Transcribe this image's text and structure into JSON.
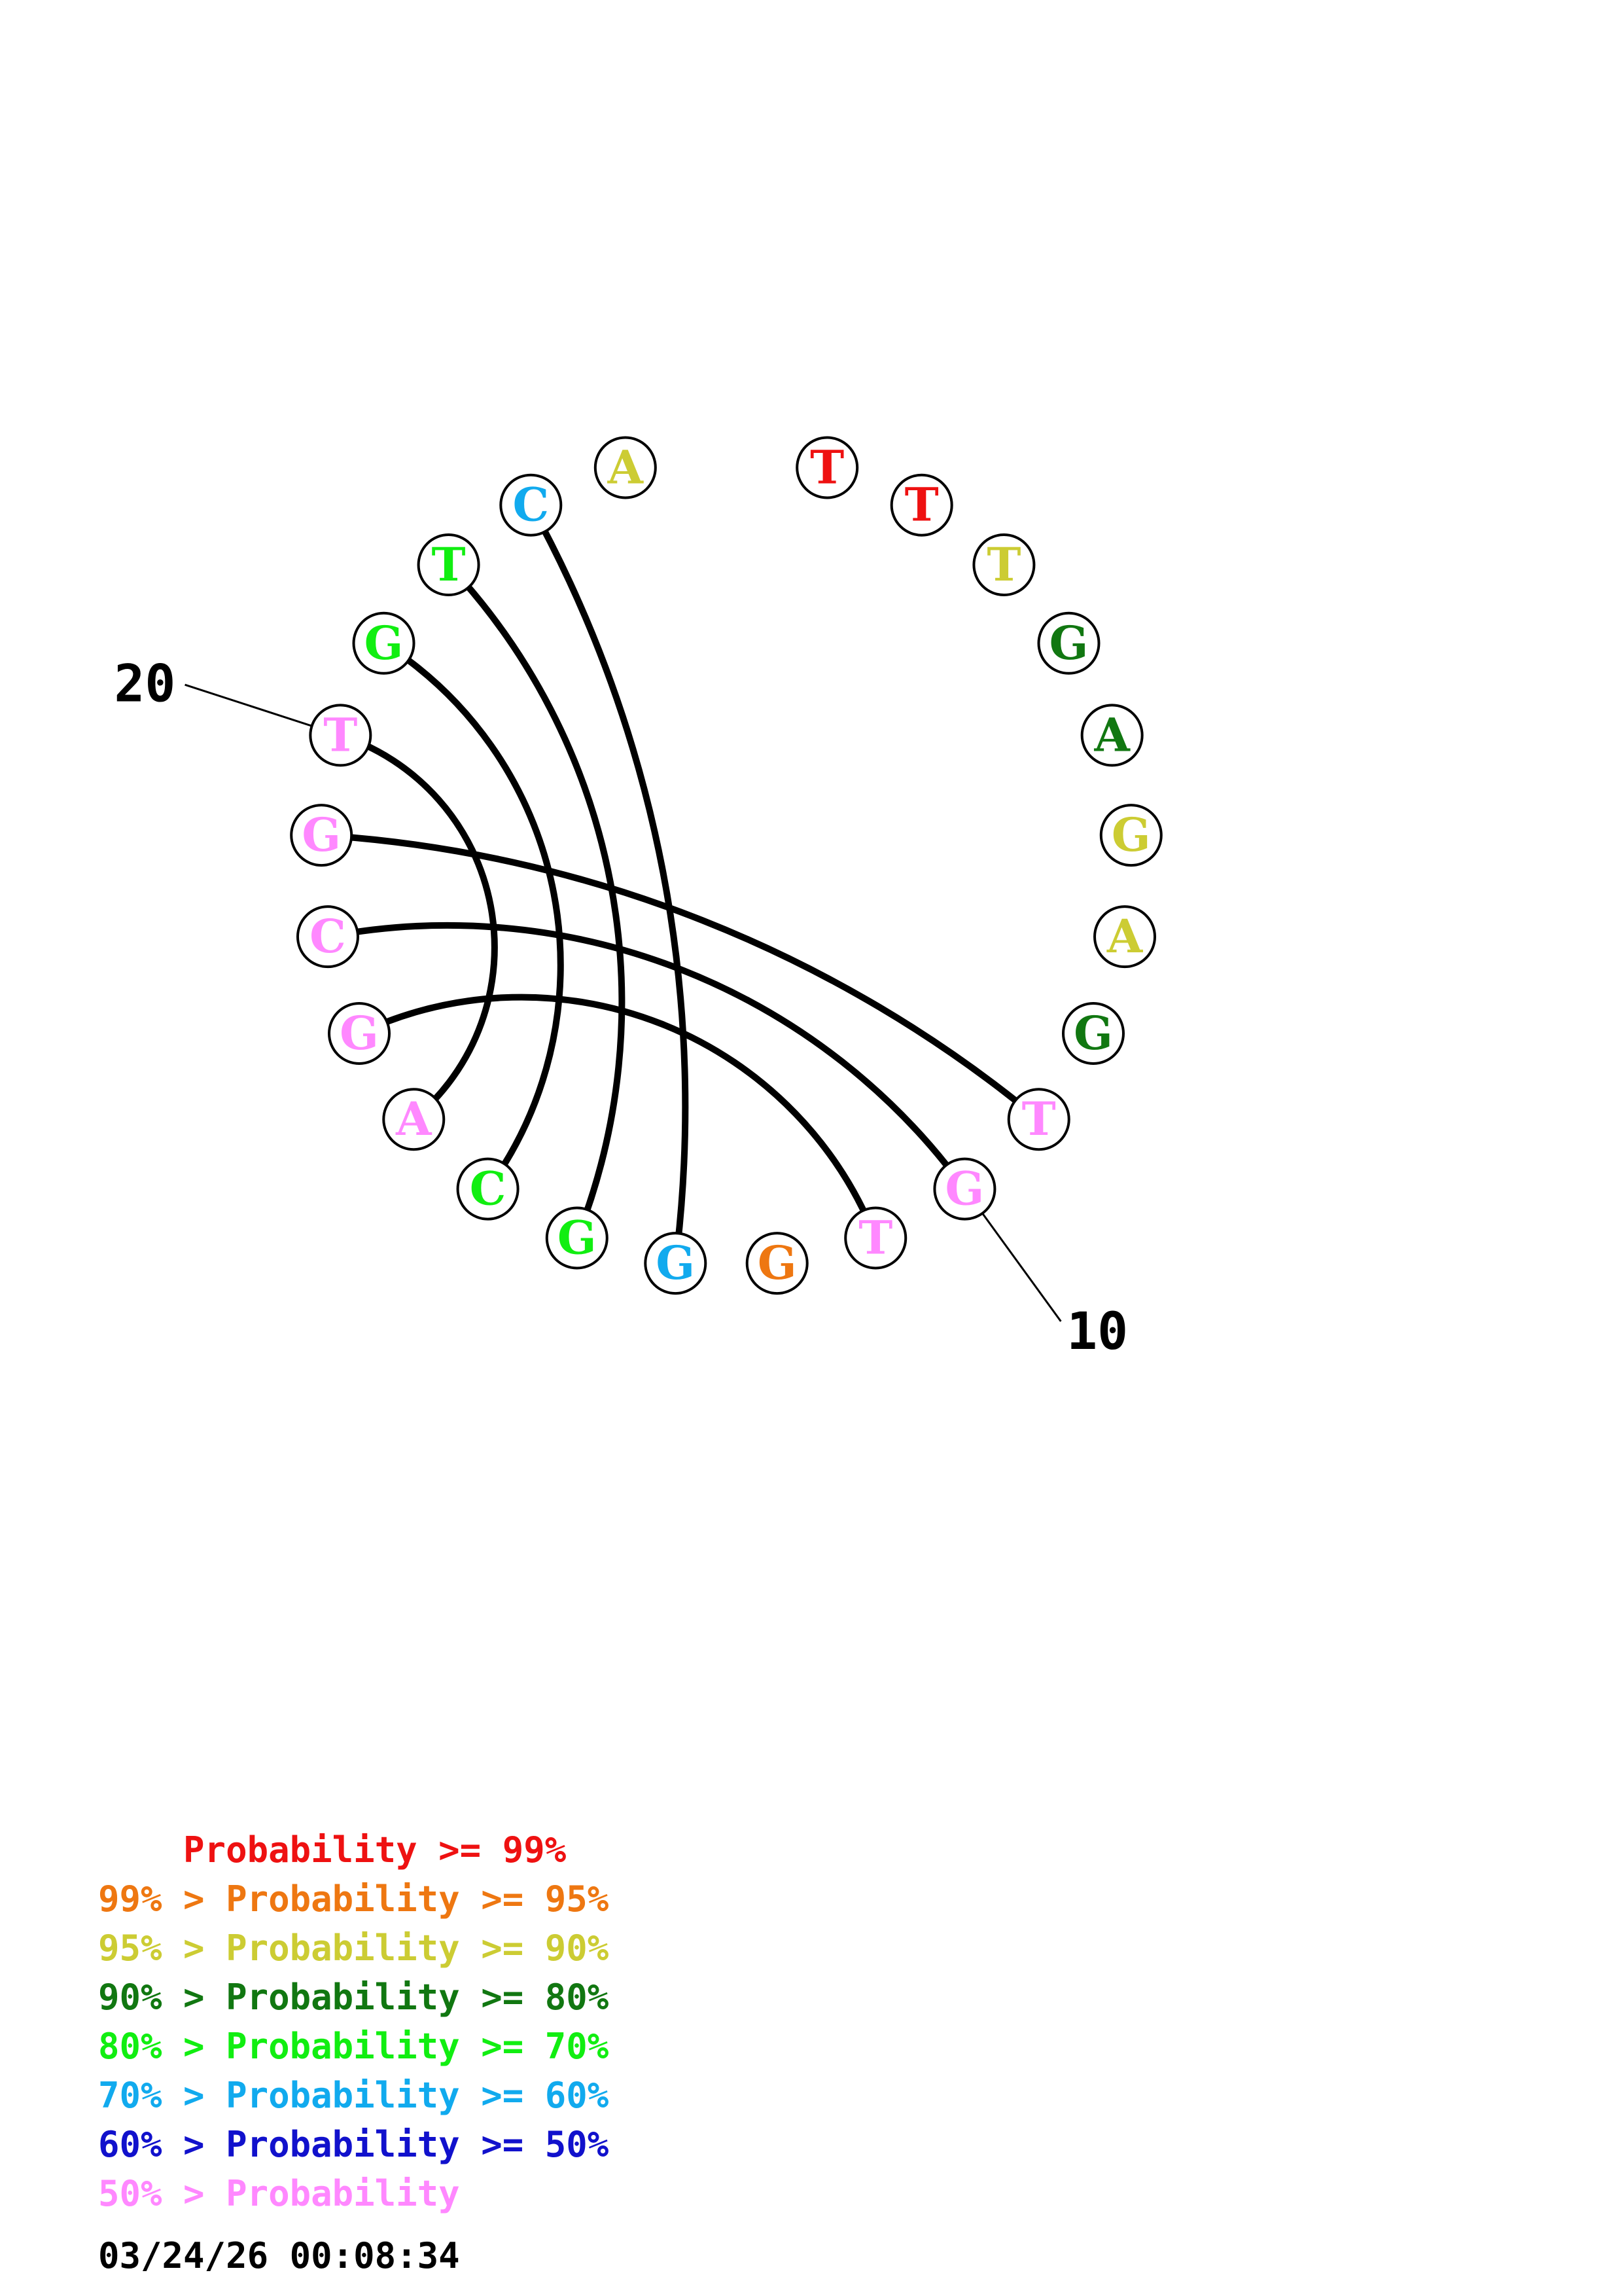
{
  "nucleotides": [
    {
      "base": "T",
      "color": "#ee1111"
    },
    {
      "base": "T",
      "color": "#ee1111"
    },
    {
      "base": "T",
      "color": "#cccc33"
    },
    {
      "base": "G",
      "color": "#117711"
    },
    {
      "base": "A",
      "color": "#117711"
    },
    {
      "base": "G",
      "color": "#cccc33"
    },
    {
      "base": "A",
      "color": "#cccc33"
    },
    {
      "base": "G",
      "color": "#117711"
    },
    {
      "base": "T",
      "color": "#ff88ff"
    },
    {
      "base": "G",
      "color": "#ff88ff"
    },
    {
      "base": "T",
      "color": "#ff88ff"
    },
    {
      "base": "G",
      "color": "#ee7711"
    },
    {
      "base": "G",
      "color": "#11aaee"
    },
    {
      "base": "G",
      "color": "#11ee11"
    },
    {
      "base": "C",
      "color": "#11ee11"
    },
    {
      "base": "A",
      "color": "#ff88ff"
    },
    {
      "base": "G",
      "color": "#ff88ff"
    },
    {
      "base": "C",
      "color": "#ff88ff"
    },
    {
      "base": "G",
      "color": "#ff88ff"
    },
    {
      "base": "T",
      "color": "#ff88ff"
    },
    {
      "base": "G",
      "color": "#11ee11"
    },
    {
      "base": "T",
      "color": "#11ee11"
    },
    {
      "base": "C",
      "color": "#11aaee"
    },
    {
      "base": "A",
      "color": "#cccc33"
    }
  ],
  "pairs": [
    [
      9,
      19
    ],
    [
      10,
      18
    ],
    [
      11,
      17
    ],
    [
      13,
      23
    ],
    [
      14,
      22
    ],
    [
      15,
      21
    ],
    [
      16,
      20
    ]
  ],
  "position_labels": [
    {
      "index": 10,
      "text": "10"
    },
    {
      "index": 20,
      "text": "20"
    }
  ],
  "legend": [
    {
      "prefix": "    ",
      "text": "    Probability >= 99%",
      "color": "#ee1111"
    },
    {
      "text": "99% > Probability >= 95%",
      "color": "#ee7711"
    },
    {
      "text": "95% > Probability >= 90%",
      "color": "#cccc33"
    },
    {
      "text": "90% > Probability >= 80%",
      "color": "#117711"
    },
    {
      "text": "80% > Probability >= 70%",
      "color": "#11ee11"
    },
    {
      "text": "70% > Probability >= 60%",
      "color": "#11aaee"
    },
    {
      "text": "60% > Probability >= 50%",
      "color": "#1111cc"
    },
    {
      "text": "50% > Probability",
      "color": "#ff88ff"
    }
  ],
  "timestamp": "03/24/26 00:08:34"
}
